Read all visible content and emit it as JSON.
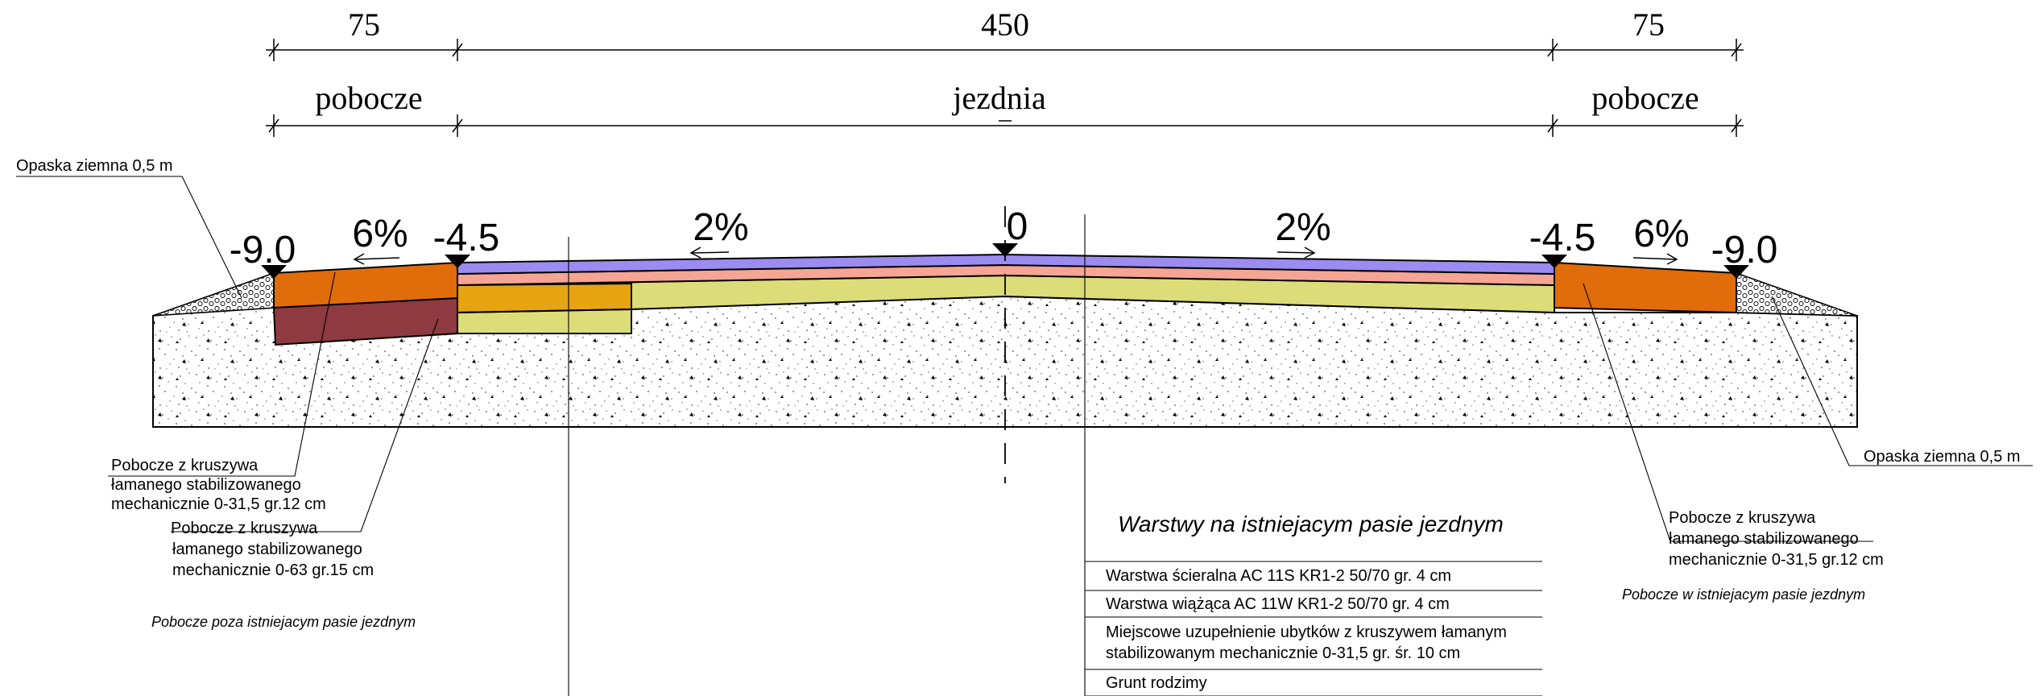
{
  "dimensions": {
    "left_width": "75",
    "center_width": "450",
    "right_width": "75",
    "left_zone": "pobocze",
    "center_zone": "jezdnia",
    "right_zone": "pobocze"
  },
  "levels": {
    "left_outer": "-9.0",
    "left_inner": "-4.5",
    "axis": "0",
    "right_inner": "-4.5",
    "right_outer": "-9.0"
  },
  "slopes": {
    "left_shoulder": "6%",
    "left_lane": "2%",
    "right_lane": "2%",
    "right_shoulder": "6%"
  },
  "callouts": {
    "left_band_top": "Opaska ziemna 0,5 m",
    "right_band": "Opaska ziemna 0,5 m",
    "left_shoulder_a": [
      "Pobocze z kruszywa",
      "łamanego stabilizowanego",
      "mechanicznie 0-31,5 gr.12 cm"
    ],
    "left_shoulder_b": [
      "Pobocze z kruszywa",
      "łamanego stabilizowanego",
      "mechanicznie 0-63 gr.15 cm"
    ],
    "right_shoulder": [
      "Pobocze z kruszywa",
      "łamanego stabilizowanego",
      "mechanicznie 0-31,5 gr.12 cm"
    ],
    "left_caption": "Pobocze poza istniejacym pasie jezdnym",
    "right_caption": "Pobocze w istniejacym pasie jezdnym"
  },
  "legend": {
    "title": "Warstwy na istniejacym pasie jezdnym",
    "rows": [
      [
        "Warstwa ścieralna AC 11S KR1-2 50/70 gr. 4 cm"
      ],
      [
        "Warstwa wiążąca AC 11W KR1-2 50/70 gr. 4 cm"
      ],
      [
        "Miejscowe uzupełnienie ubytków z kruszywem łamanym",
        "stabilizowanym mechanicznie 0-31,5 gr. śr. 10 cm"
      ],
      [
        "Grunt rodzimy"
      ]
    ]
  },
  "colors": {
    "wearing_course": "#9a8cf0",
    "binder_course": "#f6a494",
    "aggregate_fill": "#dcdc78",
    "aggregate_new": "#e6a410",
    "shoulder_aggregate": "#e06c0a",
    "shoulder_base": "#8e3a40"
  }
}
